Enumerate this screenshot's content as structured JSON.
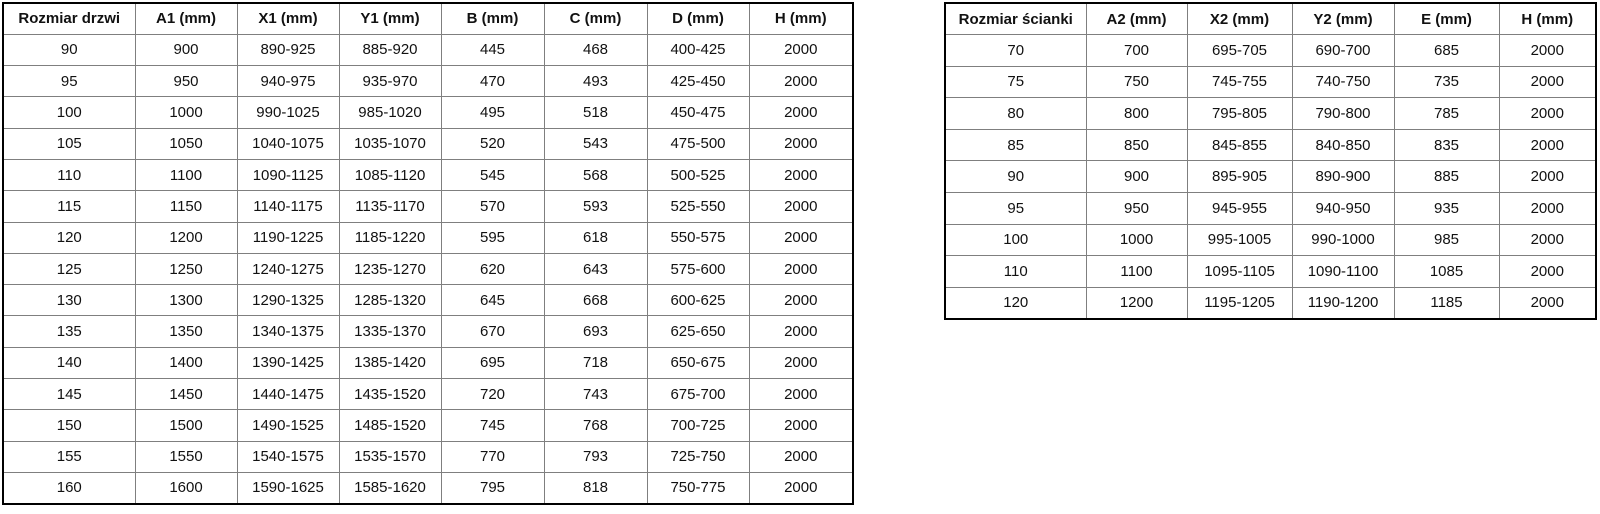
{
  "page": {
    "description": "Two shower enclosure dimension tables: door sizes and side-wall sizes"
  },
  "colors": {
    "background": "#ffffff",
    "border_outer": "#000000",
    "border_inner": "#7f7f7f",
    "text": "#111111"
  },
  "tables": [
    {
      "name": "door-size-table",
      "headers": [
        "Rozmiar drzwi",
        "A1 (mm)",
        "X1 (mm)",
        "Y1 (mm)",
        "B (mm)",
        "C (mm)",
        "D (mm)",
        "H (mm)"
      ],
      "rows": [
        [
          "90",
          "900",
          "890-925",
          "885-920",
          "445",
          "468",
          "400-425",
          "2000"
        ],
        [
          "95",
          "950",
          "940-975",
          "935-970",
          "470",
          "493",
          "425-450",
          "2000"
        ],
        [
          "100",
          "1000",
          "990-1025",
          "985-1020",
          "495",
          "518",
          "450-475",
          "2000"
        ],
        [
          "105",
          "1050",
          "1040-1075",
          "1035-1070",
          "520",
          "543",
          "475-500",
          "2000"
        ],
        [
          "110",
          "1100",
          "1090-1125",
          "1085-1120",
          "545",
          "568",
          "500-525",
          "2000"
        ],
        [
          "115",
          "1150",
          "1140-1175",
          "1135-1170",
          "570",
          "593",
          "525-550",
          "2000"
        ],
        [
          "120",
          "1200",
          "1190-1225",
          "1185-1220",
          "595",
          "618",
          "550-575",
          "2000"
        ],
        [
          "125",
          "1250",
          "1240-1275",
          "1235-1270",
          "620",
          "643",
          "575-600",
          "2000"
        ],
        [
          "130",
          "1300",
          "1290-1325",
          "1285-1320",
          "645",
          "668",
          "600-625",
          "2000"
        ],
        [
          "135",
          "1350",
          "1340-1375",
          "1335-1370",
          "670",
          "693",
          "625-650",
          "2000"
        ],
        [
          "140",
          "1400",
          "1390-1425",
          "1385-1420",
          "695",
          "718",
          "650-675",
          "2000"
        ],
        [
          "145",
          "1450",
          "1440-1475",
          "1435-1520",
          "720",
          "743",
          "675-700",
          "2000"
        ],
        [
          "150",
          "1500",
          "1490-1525",
          "1485-1520",
          "745",
          "768",
          "700-725",
          "2000"
        ],
        [
          "155",
          "1550",
          "1540-1575",
          "1535-1570",
          "770",
          "793",
          "725-750",
          "2000"
        ],
        [
          "160",
          "1600",
          "1590-1625",
          "1585-1620",
          "795",
          "818",
          "750-775",
          "2000"
        ]
      ]
    },
    {
      "name": "wall-size-table",
      "headers": [
        "Rozmiar ścianki",
        "A2 (mm)",
        "X2 (mm)",
        "Y2 (mm)",
        "E (mm)",
        "H (mm)"
      ],
      "rows": [
        [
          "70",
          "700",
          "695-705",
          "690-700",
          "685",
          "2000"
        ],
        [
          "75",
          "750",
          "745-755",
          "740-750",
          "735",
          "2000"
        ],
        [
          "80",
          "800",
          "795-805",
          "790-800",
          "785",
          "2000"
        ],
        [
          "85",
          "850",
          "845-855",
          "840-850",
          "835",
          "2000"
        ],
        [
          "90",
          "900",
          "895-905",
          "890-900",
          "885",
          "2000"
        ],
        [
          "95",
          "950",
          "945-955",
          "940-950",
          "935",
          "2000"
        ],
        [
          "100",
          "1000",
          "995-1005",
          "990-1000",
          "985",
          "2000"
        ],
        [
          "110",
          "1100",
          "1095-1105",
          "1090-1100",
          "1085",
          "2000"
        ],
        [
          "120",
          "1200",
          "1195-1205",
          "1190-1200",
          "1185",
          "2000"
        ]
      ]
    }
  ]
}
